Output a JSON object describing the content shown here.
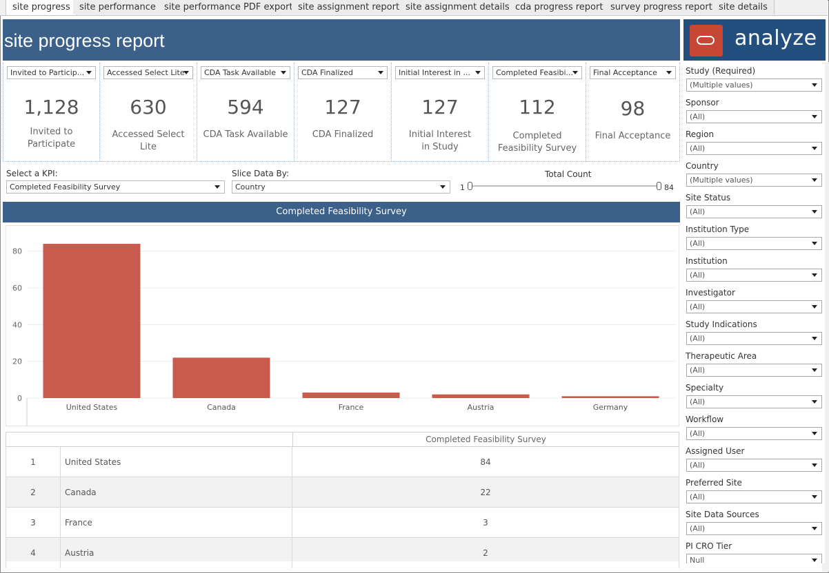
{
  "tabs": [
    {
      "label": "site progress",
      "active": true
    },
    {
      "label": "site performance",
      "active": false
    },
    {
      "label": "site performance PDF export",
      "active": false
    },
    {
      "label": "site assignment report",
      "active": false
    },
    {
      "label": "site assignment details",
      "active": false
    },
    {
      "label": "cda progress report",
      "active": false
    },
    {
      "label": "survey progress report",
      "active": false
    },
    {
      "label": "site details",
      "active": false
    }
  ],
  "header": {
    "title": "site progress report"
  },
  "brand": {
    "name": "analyze",
    "color": "#c74634"
  },
  "kpis": [
    {
      "select": "Invited to Particip...",
      "value": "1,128",
      "label": "Invited to Participate"
    },
    {
      "select": "Accessed Select Lite",
      "value": "630",
      "label": "Accessed Select Lite"
    },
    {
      "select": "CDA Task Available",
      "value": "594",
      "label": "CDA Task Available"
    },
    {
      "select": "CDA Finalized",
      "value": "127",
      "label": "CDA Finalized"
    },
    {
      "select": "Initial Interest in ...",
      "value": "127",
      "label": "Initial Interest in Study"
    },
    {
      "select": "Completed Feasibi...",
      "value": "112",
      "label": "Completed Feasibility Survey"
    },
    {
      "select": "Final Acceptance",
      "value": "98",
      "label": "Final Acceptance"
    }
  ],
  "controls": {
    "kpi_label": "Select a KPI:",
    "kpi_value": "Completed Feasibility Survey",
    "slice_label": "Slice Data By:",
    "slice_value": "Country",
    "count_label": "Total Count",
    "count_min": "1",
    "count_max": "84"
  },
  "chart_data": {
    "type": "bar",
    "title": "Completed Feasibility Survey",
    "categories": [
      "United States",
      "Canada",
      "France",
      "Austria",
      "Germany"
    ],
    "values": [
      84,
      22,
      3,
      2,
      1
    ],
    "ylim": [
      0,
      90
    ],
    "yticks": [
      0,
      20,
      40,
      60,
      80
    ],
    "color": "#c95b4c",
    "grid": true
  },
  "table": {
    "header": "Completed Feasibility Survey",
    "rows": [
      {
        "rank": "1",
        "name": "United States",
        "value": "84"
      },
      {
        "rank": "2",
        "name": "Canada",
        "value": "22"
      },
      {
        "rank": "3",
        "name": "France",
        "value": "3"
      },
      {
        "rank": "4",
        "name": "Austria",
        "value": "2"
      }
    ]
  },
  "filters": [
    {
      "label": "Study (Required)",
      "value": "(Multiple values)"
    },
    {
      "label": "Sponsor",
      "value": "(All)"
    },
    {
      "label": "Region",
      "value": "(All)"
    },
    {
      "label": "Country",
      "value": "(Multiple values)"
    },
    {
      "label": "Site Status",
      "value": "(All)"
    },
    {
      "label": "Institution Type",
      "value": "(All)"
    },
    {
      "label": "Institution",
      "value": "(All)"
    },
    {
      "label": "Investigator",
      "value": "(All)"
    },
    {
      "label": "Study Indications",
      "value": "(All)"
    },
    {
      "label": "Therapeutic Area",
      "value": "(All)"
    },
    {
      "label": "Specialty",
      "value": "(All)"
    },
    {
      "label": "Workflow",
      "value": "(All)"
    },
    {
      "label": "Assigned User",
      "value": "(All)"
    },
    {
      "label": "Preferred Site",
      "value": "(All)"
    },
    {
      "label": "Site Data Sources",
      "value": "(All)"
    },
    {
      "label": "PI CRO Tier",
      "value": "Null"
    }
  ]
}
